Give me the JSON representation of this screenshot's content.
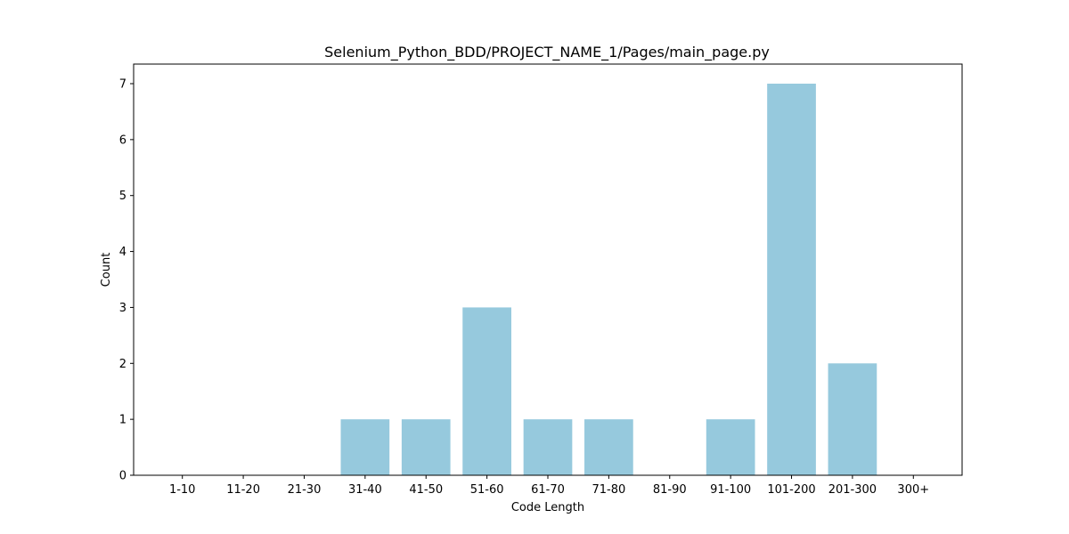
{
  "chart_data": {
    "type": "bar",
    "title": "Selenium_Python_BDD/PROJECT_NAME_1/Pages/main_page.py",
    "xlabel": "Code Length",
    "ylabel": "Count",
    "categories": [
      "1-10",
      "11-20",
      "21-30",
      "31-40",
      "41-50",
      "51-60",
      "61-70",
      "71-80",
      "81-90",
      "91-100",
      "101-200",
      "201-300",
      "300+"
    ],
    "values": [
      0,
      0,
      0,
      1,
      1,
      3,
      1,
      1,
      0,
      1,
      7,
      2,
      0
    ],
    "ylim": [
      0,
      7.35
    ],
    "yticks": [
      0,
      1,
      2,
      3,
      4,
      5,
      6,
      7
    ],
    "bar_color": "#96c9dd",
    "grid": false,
    "legend": "none"
  }
}
